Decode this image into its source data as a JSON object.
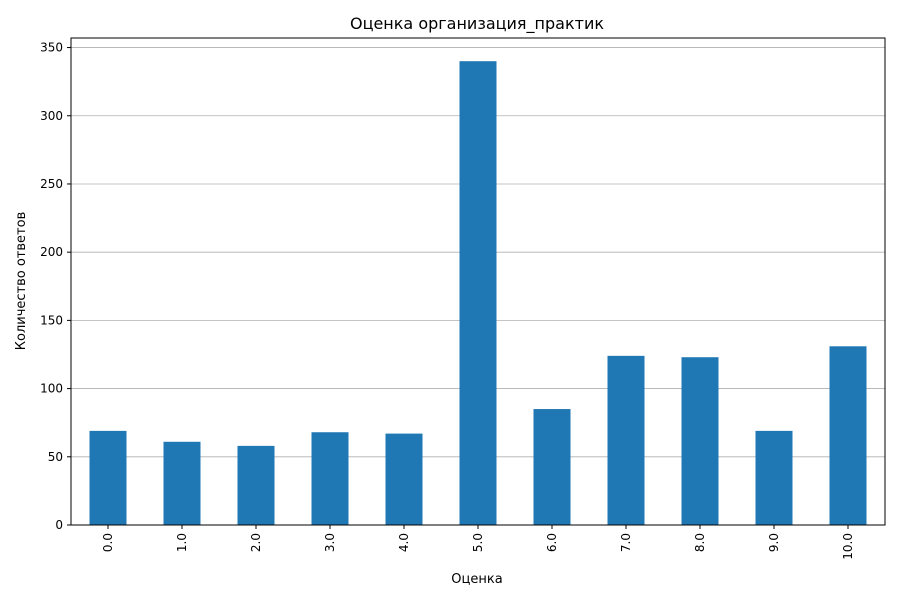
{
  "chart_data": {
    "type": "bar",
    "title": "Оценка организация_практик",
    "xlabel": "Оценка",
    "ylabel": "Количество ответов",
    "categories": [
      "0.0",
      "1.0",
      "2.0",
      "3.0",
      "4.0",
      "5.0",
      "6.0",
      "7.0",
      "8.0",
      "9.0",
      "10.0"
    ],
    "values": [
      69,
      61,
      58,
      68,
      67,
      340,
      85,
      124,
      123,
      69,
      131
    ],
    "ylim": [
      0,
      357
    ],
    "yticks": [
      "0",
      "50",
      "100",
      "150",
      "200",
      "250",
      "300",
      "350"
    ],
    "grid": "y",
    "legend": "none",
    "bar_color": "#1f77b4"
  }
}
